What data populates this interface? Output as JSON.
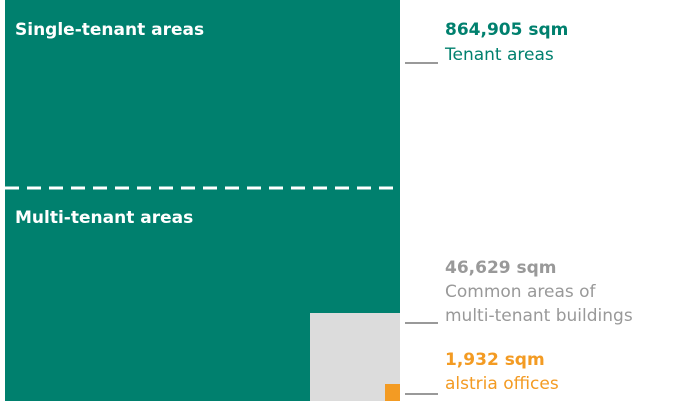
{
  "areas": [
    {
      "label": "Single-tenant areas"
    },
    {
      "label": "Multi-tenant areas"
    }
  ],
  "legend": [
    {
      "value": "864,905 sqm",
      "lines": [
        "Tenant areas"
      ]
    },
    {
      "value": "46,629 sqm",
      "lines": [
        "Common areas of",
        "multi-tenant buildings"
      ]
    },
    {
      "value": "1,932 sqm",
      "lines": [
        "alstria offices"
      ]
    }
  ]
}
